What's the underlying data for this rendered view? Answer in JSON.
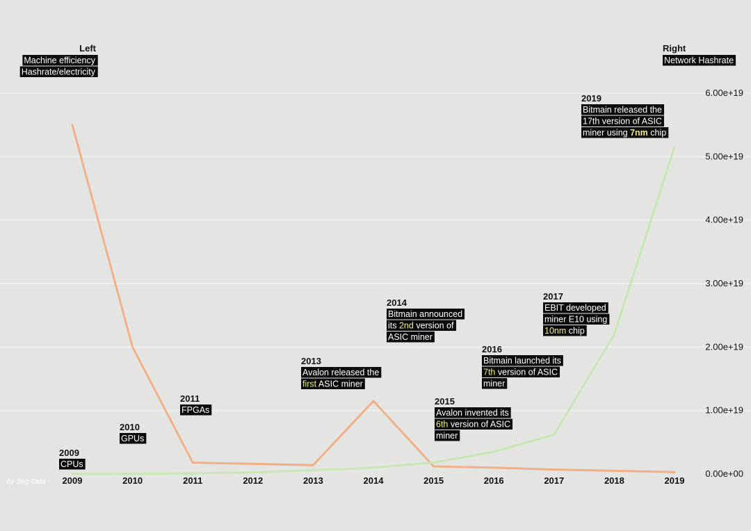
{
  "chart_data": {
    "type": "line",
    "x": [
      2009,
      2010,
      2011,
      2012,
      2013,
      2014,
      2015,
      2016,
      2017,
      2018,
      2019
    ],
    "series": [
      {
        "axis": "left",
        "color": "#f0b088",
        "values": [
          5.5,
          2.0,
          0.18,
          0.16,
          0.14,
          1.15,
          0.12,
          0.1,
          0.07,
          0.05,
          0.03
        ]
      },
      {
        "axis": "right",
        "color": "#c8e6b4",
        "values": [
          0,
          2e+16,
          1e+17,
          2.5e+17,
          6e+17,
          1e+18,
          1.8e+18,
          3.5e+18,
          6.2e+18,
          2.2e+19,
          5.15e+19
        ]
      }
    ],
    "left_axis": {
      "heading": "Left",
      "labels": [
        "Machine efficiency",
        "Hashrate/electricity"
      ],
      "ylim": [
        0,
        6.0
      ]
    },
    "right_axis": {
      "heading": "Right",
      "label": "Network Hashrate",
      "ylim": [
        0,
        6e+19
      ],
      "ticks": [
        "0.00e+00",
        "1.00e+19",
        "2.00e+19",
        "3.00e+19",
        "4.00e+19",
        "5.00e+19",
        "6.00e+19"
      ]
    },
    "grid": true,
    "watermark": "by Jing Data",
    "annotations": [
      {
        "year": "2009",
        "lines": [
          [
            {
              "t": "CPUs"
            }
          ]
        ]
      },
      {
        "year": "2010",
        "lines": [
          [
            {
              "t": "GPUs"
            }
          ]
        ]
      },
      {
        "year": "2011",
        "lines": [
          [
            {
              "t": "FPGAs"
            }
          ]
        ]
      },
      {
        "year": "2013",
        "lines": [
          [
            {
              "t": "Avalon released the"
            }
          ],
          [
            {
              "t": "first",
              "h": true
            },
            {
              "t": " ASIC miner"
            }
          ]
        ]
      },
      {
        "year": "2014",
        "lines": [
          [
            {
              "t": "Bitmain announced"
            }
          ],
          [
            {
              "t": "its "
            },
            {
              "t": "2nd",
              "h": true
            },
            {
              "t": " version of"
            }
          ],
          [
            {
              "t": "ASIC miner"
            }
          ]
        ]
      },
      {
        "year": "2015",
        "lines": [
          [
            {
              "t": "Avalon invented its"
            }
          ],
          [
            {
              "t": "6th",
              "h": true
            },
            {
              "t": " version of ASIC"
            }
          ],
          [
            {
              "t": "miner"
            }
          ]
        ]
      },
      {
        "year": "2016",
        "lines": [
          [
            {
              "t": "Bitmain launched its"
            }
          ],
          [
            {
              "t": "7th",
              "h": true
            },
            {
              "t": " version of ASIC"
            }
          ],
          [
            {
              "t": "miner"
            }
          ]
        ]
      },
      {
        "year": "2017",
        "lines": [
          [
            {
              "t": "EBIT developed"
            }
          ],
          [
            {
              "t": "miner E10 using"
            }
          ],
          [
            {
              "t": "10nm",
              "h": true
            },
            {
              "t": " chip"
            }
          ]
        ]
      },
      {
        "year": "2019",
        "lines": [
          [
            {
              "t": "Bitmain released the"
            }
          ],
          [
            {
              "t": "17th version of ASIC"
            }
          ],
          [
            {
              "t": "miner using "
            },
            {
              "t": "7nm",
              "h": true,
              "b": true
            },
            {
              "t": " chip"
            }
          ]
        ]
      }
    ]
  }
}
